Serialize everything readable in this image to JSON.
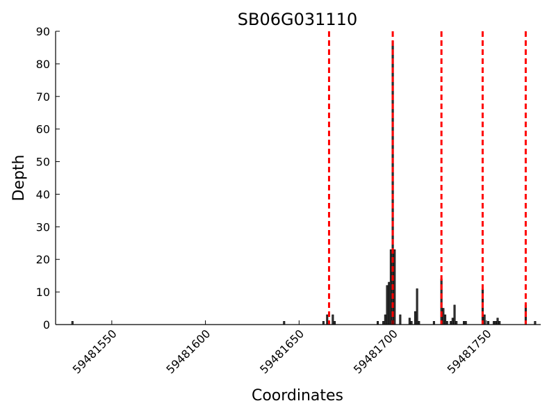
{
  "chart_data": {
    "type": "bar",
    "title": "SB06G031110",
    "xlabel": "Coordinates",
    "ylabel": "Depth",
    "xlim": [
      59481520,
      59481779
    ],
    "ylim": [
      0,
      90
    ],
    "grid": false,
    "bar_color": "#333333",
    "line_color": "#ff0000",
    "x_ticks": [
      59481550,
      59481600,
      59481650,
      59481700,
      59481750
    ],
    "x_tick_labels": [
      "59481550",
      "59481600",
      "59481650",
      "59481700",
      "59481750"
    ],
    "y_ticks": [
      0,
      10,
      20,
      30,
      40,
      50,
      60,
      70,
      80,
      90
    ],
    "y_tick_labels": [
      "0",
      "10",
      "20",
      "30",
      "40",
      "50",
      "60",
      "70",
      "80",
      "90"
    ],
    "vertical_lines_x": [
      59481666,
      59481700,
      59481726,
      59481748,
      59481771
    ],
    "bars": [
      {
        "x": 59481529,
        "y": 1
      },
      {
        "x": 59481642,
        "y": 1
      },
      {
        "x": 59481663,
        "y": 1
      },
      {
        "x": 59481665,
        "y": 3
      },
      {
        "x": 59481668,
        "y": 3
      },
      {
        "x": 59481669,
        "y": 1
      },
      {
        "x": 59481692,
        "y": 1
      },
      {
        "x": 59481695,
        "y": 1
      },
      {
        "x": 59481696,
        "y": 3
      },
      {
        "x": 59481697,
        "y": 12
      },
      {
        "x": 59481698,
        "y": 13
      },
      {
        "x": 59481699,
        "y": 23
      },
      {
        "x": 59481700,
        "y": 87
      },
      {
        "x": 59481701,
        "y": 23
      },
      {
        "x": 59481704,
        "y": 3
      },
      {
        "x": 59481709,
        "y": 2
      },
      {
        "x": 59481710,
        "y": 1
      },
      {
        "x": 59481712,
        "y": 4
      },
      {
        "x": 59481713,
        "y": 11
      },
      {
        "x": 59481714,
        "y": 1
      },
      {
        "x": 59481722,
        "y": 1
      },
      {
        "x": 59481726,
        "y": 14
      },
      {
        "x": 59481727,
        "y": 5
      },
      {
        "x": 59481728,
        "y": 3
      },
      {
        "x": 59481729,
        "y": 1
      },
      {
        "x": 59481731,
        "y": 1
      },
      {
        "x": 59481732,
        "y": 2
      },
      {
        "x": 59481733,
        "y": 6
      },
      {
        "x": 59481734,
        "y": 1
      },
      {
        "x": 59481738,
        "y": 1
      },
      {
        "x": 59481739,
        "y": 1
      },
      {
        "x": 59481748,
        "y": 11
      },
      {
        "x": 59481749,
        "y": 3
      },
      {
        "x": 59481751,
        "y": 1
      },
      {
        "x": 59481754,
        "y": 1
      },
      {
        "x": 59481755,
        "y": 1
      },
      {
        "x": 59481756,
        "y": 2
      },
      {
        "x": 59481757,
        "y": 1
      },
      {
        "x": 59481771,
        "y": 6
      },
      {
        "x": 59481776,
        "y": 1
      }
    ]
  }
}
